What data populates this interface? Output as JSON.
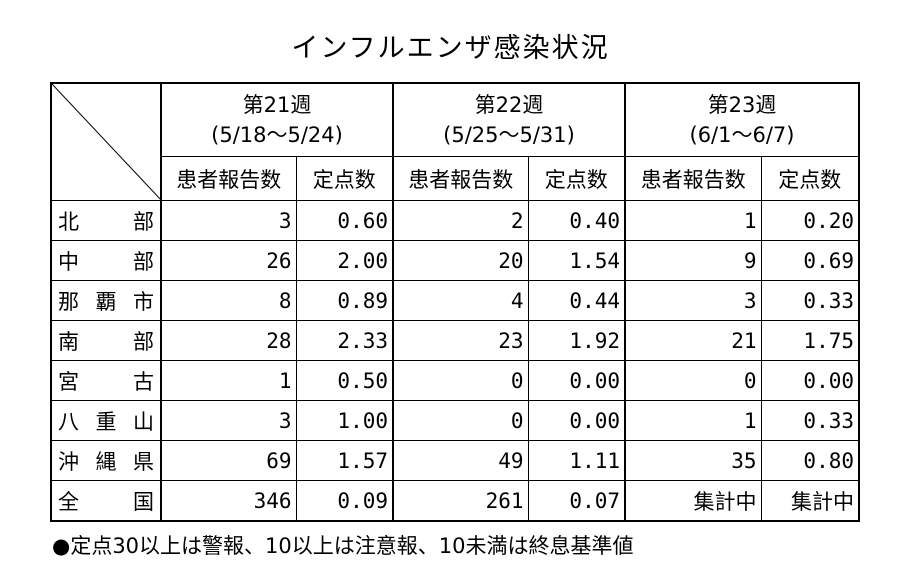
{
  "title": "インフルエンザ感染状況",
  "table": {
    "weeks": [
      {
        "label": "第21週",
        "range": "(5/18〜5/24)"
      },
      {
        "label": "第22週",
        "range": "(5/25〜5/31)"
      },
      {
        "label": "第23週",
        "range": "(6/1〜6/7)"
      }
    ],
    "subheaders": [
      "患者報告数",
      "定点数"
    ],
    "rows": [
      [
        "北部",
        "3",
        "0.60",
        "2",
        "0.40",
        "1",
        "0.20"
      ],
      [
        "中部",
        "26",
        "2.00",
        "20",
        "1.54",
        "9",
        "0.69"
      ],
      [
        "那覇市",
        "8",
        "0.89",
        "4",
        "0.44",
        "3",
        "0.33"
      ],
      [
        "南部",
        "28",
        "2.33",
        "23",
        "1.92",
        "21",
        "1.75"
      ],
      [
        "宮古",
        "1",
        "0.50",
        "0",
        "0.00",
        "0",
        "0.00"
      ],
      [
        "八重山",
        "3",
        "1.00",
        "0",
        "0.00",
        "1",
        "0.33"
      ],
      [
        "沖縄県",
        "69",
        "1.57",
        "49",
        "1.11",
        "35",
        "0.80"
      ],
      [
        "全国",
        "346",
        "0.09",
        "261",
        "0.07",
        "集計中",
        "集計中"
      ]
    ]
  },
  "note": "●定点30以上は警報、10以上は注意報、10未満は終息基準値"
}
